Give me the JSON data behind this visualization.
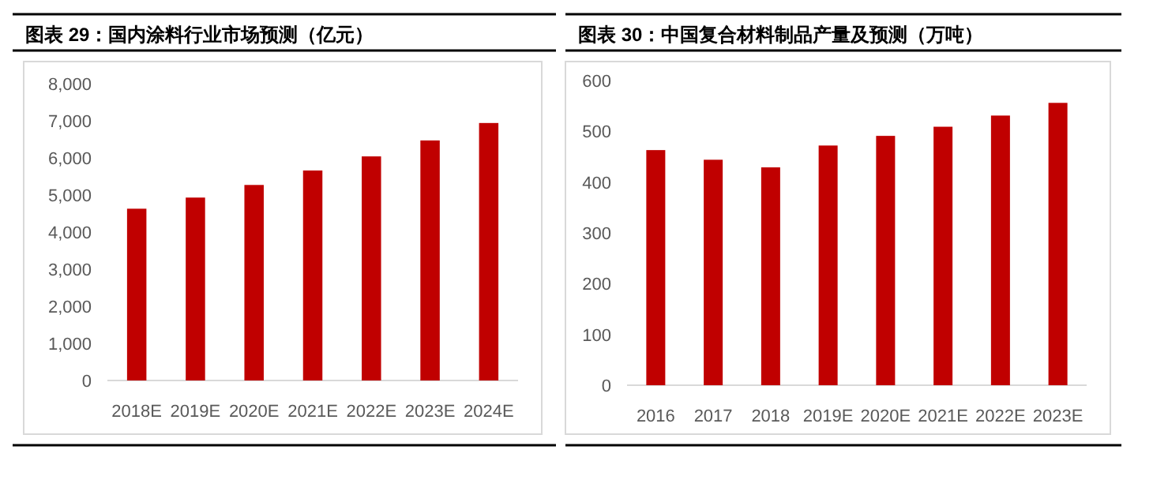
{
  "chart_data": [
    {
      "type": "bar",
      "title": "图表 29：国内涂料行业市场预测（亿元）",
      "categories": [
        "2018E",
        "2019E",
        "2020E",
        "2021E",
        "2022E",
        "2023E",
        "2024E"
      ],
      "values": [
        4630,
        4930,
        5270,
        5660,
        6040,
        6470,
        6940
      ],
      "color": "#c00000",
      "ylim": [
        0,
        8000
      ],
      "yticks": [
        0,
        {
          "value": 1000,
          "label": "1,000"
        },
        {
          "value": 2000,
          "label": "2,000"
        },
        {
          "value": 3000,
          "label": "3,000"
        },
        {
          "value": 4000,
          "label": "4,000"
        },
        {
          "value": 5000,
          "label": "5,000"
        },
        {
          "value": 6000,
          "label": "6,000"
        },
        {
          "value": 7000,
          "label": "7,000"
        },
        {
          "value": 8000,
          "label": "8,000"
        }
      ]
    },
    {
      "type": "bar",
      "title": "图表 30：中国复合材料制品产量及预测（万吨）",
      "categories": [
        "2016",
        "2017",
        "2018",
        "2019E",
        "2020E",
        "2021E",
        "2022E",
        "2023E"
      ],
      "values": [
        463,
        444,
        429,
        472,
        491,
        509,
        531,
        556
      ],
      "color": "#c00000",
      "ylim": [
        0,
        600
      ],
      "yticks": [
        0,
        100,
        200,
        300,
        400,
        500,
        600
      ]
    }
  ]
}
